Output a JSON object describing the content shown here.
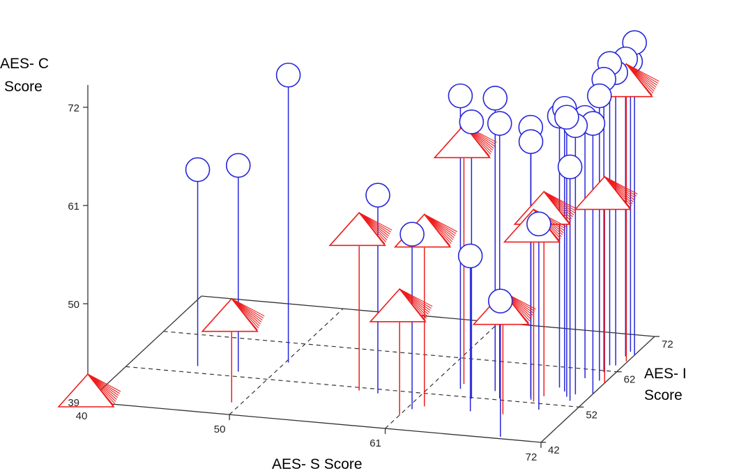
{
  "chart_data": {
    "type": "scatter3d-stem",
    "xlabel": "AES- S Score",
    "ylabel_line1": "AES- I",
    "ylabel_line2": "Score",
    "zlabel_line1": "AES- C",
    "zlabel_line2": "Score",
    "x_ticks": [
      "40",
      "50",
      "61",
      "72"
    ],
    "y_ticks": [
      "42",
      "52",
      "62",
      "72"
    ],
    "z_ticks": [
      "39",
      "50",
      "61",
      "72"
    ],
    "xlim": [
      40,
      72
    ],
    "ylim": [
      42,
      72
    ],
    "zlim": [
      39,
      72
    ],
    "colors": {
      "circle": "#2626d9",
      "pyramid": "#ee1c1c",
      "axes": "#333333"
    },
    "series": [
      {
        "marker": "circle",
        "points": [
          {
            "x": 44.6,
            "y": 53.8,
            "z": 61.0
          },
          {
            "x": 47.6,
            "y": 53.3,
            "z": 62.1
          },
          {
            "x": 50.2,
            "y": 56.8,
            "z": 71.2
          },
          {
            "x": 58.1,
            "y": 50.9,
            "z": 61.2
          },
          {
            "x": 61.4,
            "y": 47.6,
            "z": 58.6
          },
          {
            "x": 63.1,
            "y": 54.0,
            "z": 71.8
          },
          {
            "x": 65.3,
            "y": 48.4,
            "z": 56.4
          },
          {
            "x": 69.0,
            "y": 42.5,
            "z": 54.2
          },
          {
            "x": 64.5,
            "y": 51.7,
            "z": 70.0
          },
          {
            "x": 66.3,
            "y": 52.4,
            "z": 69.8
          },
          {
            "x": 65.5,
            "y": 54.2,
            "z": 71.8
          },
          {
            "x": 68.2,
            "y": 53.5,
            "z": 69.2
          },
          {
            "x": 68.4,
            "y": 52.8,
            "z": 67.9
          },
          {
            "x": 71.0,
            "y": 53.4,
            "z": 65.2
          },
          {
            "x": 70.0,
            "y": 55.7,
            "z": 70.7
          },
          {
            "x": 70.9,
            "y": 55.2,
            "z": 69.1
          },
          {
            "x": 70.5,
            "y": 54.4,
            "z": 70.3
          },
          {
            "x": 72.0,
            "y": 55.7,
            "z": 69.3
          },
          {
            "x": 69.6,
            "y": 50.4,
            "z": 59.8
          },
          {
            "x": 69.4,
            "y": 56.6,
            "z": 69.4
          },
          {
            "x": 70.4,
            "y": 59.6,
            "z": 68.2
          },
          {
            "x": 71.5,
            "y": 59.3,
            "z": 70.9
          },
          {
            "x": 71.2,
            "y": 61.6,
            "z": 71.8
          },
          {
            "x": 71.1,
            "y": 63.5,
            "z": 72.8
          },
          {
            "x": 71.5,
            "y": 63.6,
            "z": 71.8
          },
          {
            "x": 71.5,
            "y": 66.2,
            "z": 72.3
          },
          {
            "x": 71.5,
            "y": 67.5,
            "z": 71.5
          },
          {
            "x": 72.0,
            "y": 66.7,
            "z": 74.0
          }
        ]
      },
      {
        "marker": "pyramid",
        "points": [
          {
            "x": 40.0,
            "y": 42.0,
            "z": 39.0
          },
          {
            "x": 49.3,
            "y": 45.2,
            "z": 47.5
          },
          {
            "x": 56.7,
            "y": 51.2,
            "z": 55.8
          },
          {
            "x": 61.0,
            "y": 45.8,
            "z": 50.0
          },
          {
            "x": 62.0,
            "y": 48.6,
            "z": 57.4
          },
          {
            "x": 63.0,
            "y": 55.3,
            "z": 64.9
          },
          {
            "x": 67.6,
            "y": 48.4,
            "z": 49.6
          },
          {
            "x": 68.7,
            "y": 52.4,
            "z": 57.4
          },
          {
            "x": 69.0,
            "y": 54.0,
            "z": 58.8
          },
          {
            "x": 72.0,
            "y": 58.8,
            "z": 59.0
          },
          {
            "x": 71.9,
            "y": 64.9,
            "z": 69.2
          }
        ]
      }
    ]
  }
}
